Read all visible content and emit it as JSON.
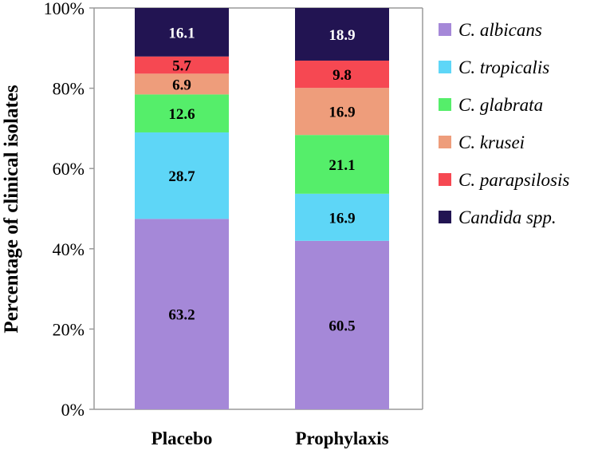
{
  "chart_data": {
    "type": "bar",
    "stacked": true,
    "normalized": true,
    "title": "",
    "xlabel": "",
    "ylabel": "Percentage of clinical isolates",
    "ylim": [
      0,
      100
    ],
    "yticks": [
      "0%",
      "20%",
      "40%",
      "60%",
      "80%",
      "100%"
    ],
    "categories": [
      "Placebo",
      "Prophylaxis"
    ],
    "series": [
      {
        "name": "C. albicans",
        "color": "#a588d8",
        "values": [
          63.2,
          60.5
        ]
      },
      {
        "name": "C. tropicalis",
        "color": "#5ed6f7",
        "values": [
          28.7,
          16.9
        ]
      },
      {
        "name": "C. glabrata",
        "color": "#55ee6a",
        "values": [
          12.6,
          21.1
        ]
      },
      {
        "name": "C. krusei",
        "color": "#ee9d7b",
        "values": [
          6.9,
          16.9
        ]
      },
      {
        "name": "C. parapsilosis",
        "color": "#f64852",
        "values": [
          5.7,
          9.8
        ]
      },
      {
        "name": "Candida spp.",
        "color": "#221452",
        "values": [
          16.1,
          18.9
        ]
      }
    ],
    "legend_position": "right",
    "grid": false
  }
}
